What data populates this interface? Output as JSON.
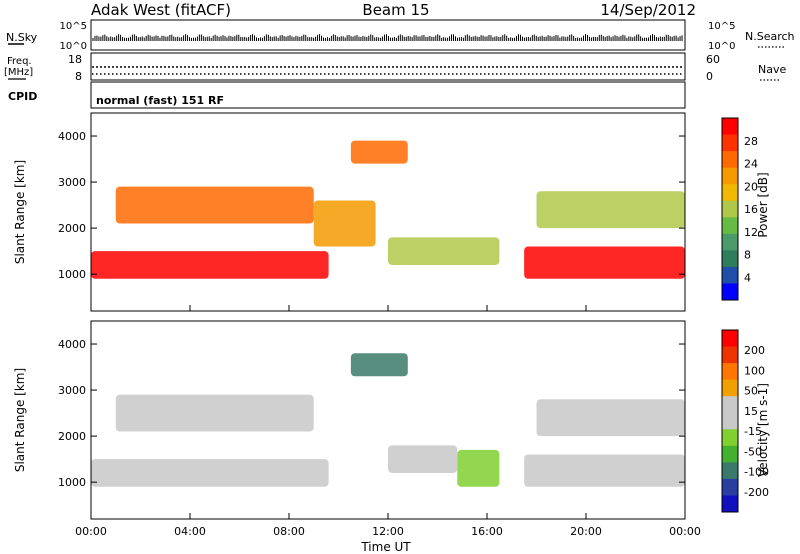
{
  "header": {
    "station": "Adak West (fitACF)",
    "beam": "Beam 15",
    "date": "14/Sep/2012"
  },
  "noise_panel": {
    "left_label": "N.Sky",
    "right_label": "N.Search",
    "left_ticks": [
      "10^5",
      "10^0"
    ],
    "right_ticks": [
      "10^5",
      "10^0"
    ]
  },
  "freq_panel": {
    "left_label": "Freq.",
    "left_unit": "[MHz]",
    "right_label": "Nave",
    "left_ticks": [
      "18",
      "8"
    ],
    "right_ticks": [
      "60",
      "0"
    ]
  },
  "cpid_panel": {
    "label": "CPID",
    "mode_text": "normal (fast) 151 RF"
  },
  "colors": {
    "power_scale": [
      "#0000ff",
      "#1f4fa8",
      "#2e7d5b",
      "#4a9a6a",
      "#66bb44",
      "#b0c84a",
      "#f0b800",
      "#f59a00",
      "#ff6a00",
      "#ff3300",
      "#ff0000"
    ],
    "velocity_scale": [
      "#ff0000",
      "#ee3300",
      "#ff7700",
      "#f0a000",
      "#c8c8c8",
      "#c8c8c8",
      "#7fd030",
      "#44b030",
      "#3a7a6a",
      "#2a3ea0",
      "#1010c0"
    ]
  },
  "chart_data": [
    {
      "type": "heatmap",
      "ylabel": "Slant Range [km]",
      "xlabel": "Time UT",
      "ylim": [
        200,
        4500
      ],
      "xlim": [
        "00:00",
        "24:00"
      ],
      "y_ticks": [
        "1000",
        "2000",
        "3000",
        "4000"
      ],
      "x_ticks": [
        "00:00",
        "04:00",
        "08:00",
        "12:00",
        "16:00",
        "20:00",
        "00:00"
      ],
      "colorbar": {
        "label": "Power [dB]",
        "ticks": [
          "4",
          "8",
          "12",
          "16",
          "20",
          "24",
          "28"
        ],
        "range": [
          0,
          30
        ]
      },
      "features": [
        {
          "t_start": 0.0,
          "t_end": 9.6,
          "range_start": 900,
          "range_end": 1500,
          "power_db": 28
        },
        {
          "t_start": 1.0,
          "t_end": 9.0,
          "range_start": 2100,
          "range_end": 2900,
          "power_db": 22
        },
        {
          "t_start": 9.0,
          "t_end": 11.5,
          "range_start": 1600,
          "range_end": 2600,
          "power_db": 20
        },
        {
          "t_start": 10.5,
          "t_end": 12.8,
          "range_start": 3400,
          "range_end": 3900,
          "power_db": 22
        },
        {
          "t_start": 12.0,
          "t_end": 16.5,
          "range_start": 1200,
          "range_end": 1800,
          "power_db": 16
        },
        {
          "t_start": 17.5,
          "t_end": 24.0,
          "range_start": 900,
          "range_end": 1600,
          "power_db": 28
        },
        {
          "t_start": 18.0,
          "t_end": 24.0,
          "range_start": 2000,
          "range_end": 2800,
          "power_db": 14
        }
      ]
    },
    {
      "type": "heatmap",
      "ylabel": "Slant Range [km]",
      "xlabel": "Time UT",
      "ylim": [
        200,
        4500
      ],
      "xlim": [
        "00:00",
        "24:00"
      ],
      "y_ticks": [
        "1000",
        "2000",
        "3000",
        "4000"
      ],
      "x_ticks": [
        "00:00",
        "04:00",
        "08:00",
        "12:00",
        "16:00",
        "20:00",
        "00:00"
      ],
      "colorbar": {
        "label": "Velocity [m s-1]",
        "ticks": [
          "200",
          "100",
          "50",
          "15",
          "-15",
          "-50",
          "-100",
          "-200"
        ],
        "range": [
          -250,
          250
        ]
      },
      "features": [
        {
          "t_start": 0.0,
          "t_end": 9.6,
          "range_start": 900,
          "range_end": 1500,
          "velocity": 0
        },
        {
          "t_start": 1.0,
          "t_end": 9.0,
          "range_start": 2100,
          "range_end": 2900,
          "velocity": 0
        },
        {
          "t_start": 10.5,
          "t_end": 12.8,
          "range_start": 3300,
          "range_end": 3800,
          "velocity": -150
        },
        {
          "t_start": 12.0,
          "t_end": 14.8,
          "range_start": 1200,
          "range_end": 1800,
          "velocity": 40
        },
        {
          "t_start": 14.8,
          "t_end": 16.5,
          "range_start": 900,
          "range_end": 1700,
          "velocity": -50
        },
        {
          "t_start": 17.5,
          "t_end": 24.0,
          "range_start": 900,
          "range_end": 1600,
          "velocity": 0
        },
        {
          "t_start": 18.0,
          "t_end": 24.0,
          "range_start": 2000,
          "range_end": 2800,
          "velocity": 0
        }
      ]
    }
  ]
}
